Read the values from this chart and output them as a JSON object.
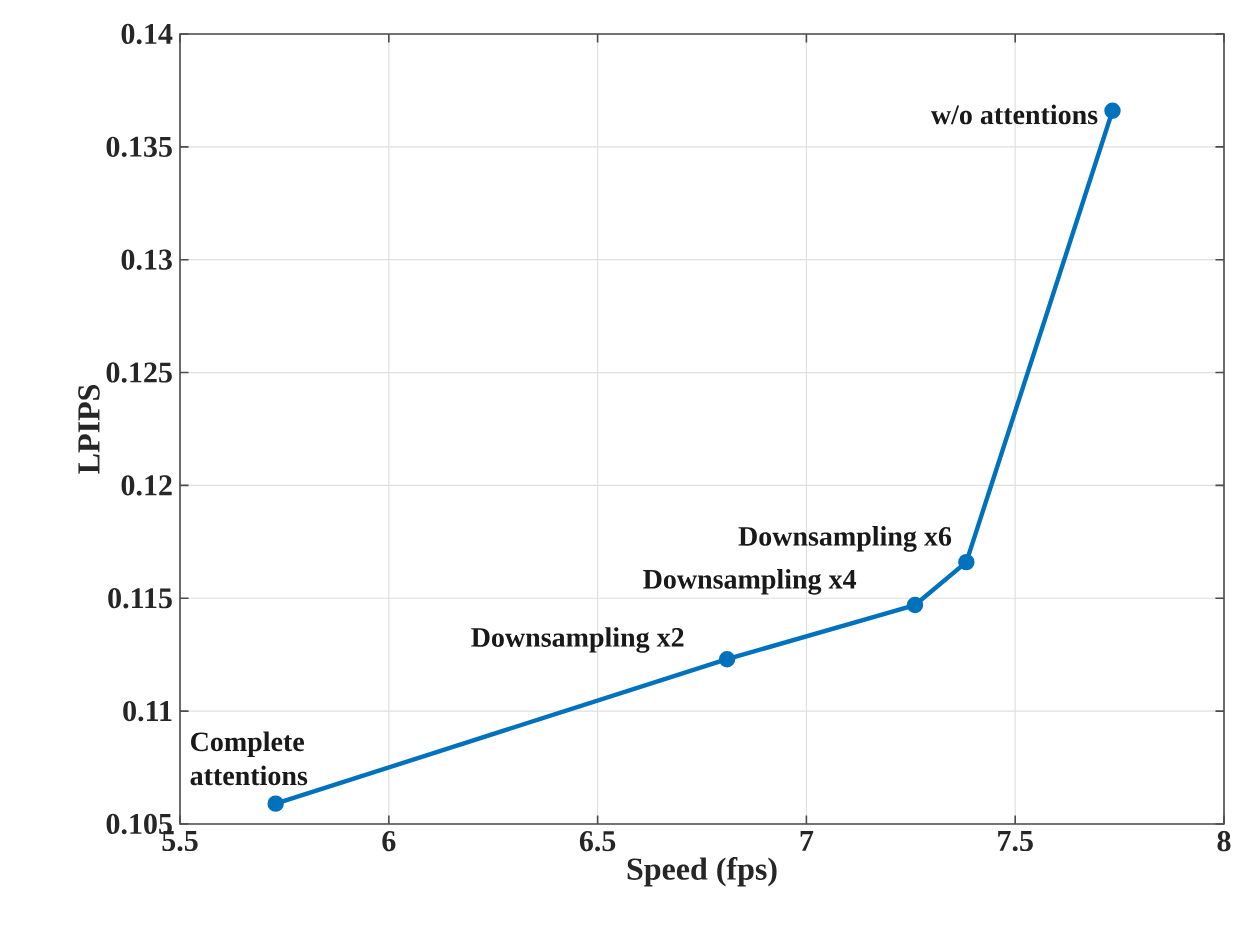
{
  "chart_data": {
    "type": "line",
    "xlabel": "Speed (fps)",
    "ylabel": "LPIPS",
    "series": [
      {
        "color": "#0072bd",
        "x": [
          5.729,
          6.81,
          7.26,
          7.383,
          7.733
        ],
        "values": [
          0.1059,
          0.1123,
          0.1147,
          0.1166,
          0.1366
        ]
      }
    ],
    "xlim": [
      5.5,
      8
    ],
    "ylim": [
      0.105,
      0.14
    ],
    "xticks": [
      5.5,
      6,
      6.5,
      7,
      7.5,
      8
    ],
    "yticks": [
      0.105,
      0.11,
      0.115,
      0.12,
      0.125,
      0.13,
      0.135,
      0.14
    ],
    "grid": true,
    "marker": "circle",
    "line_style": "solid",
    "annotations": [
      {
        "text": "Complete attentions",
        "x": 5.729,
        "y": 0.1059
      },
      {
        "text": "Downsampling x2",
        "x": 6.81,
        "y": 0.1123
      },
      {
        "text": "Downsampling x4",
        "x": 7.26,
        "y": 0.1147
      },
      {
        "text": "Downsampling x6",
        "x": 7.383,
        "y": 0.1166
      },
      {
        "text": "w/o attentions",
        "x": 7.733,
        "y": 0.1366
      }
    ]
  }
}
